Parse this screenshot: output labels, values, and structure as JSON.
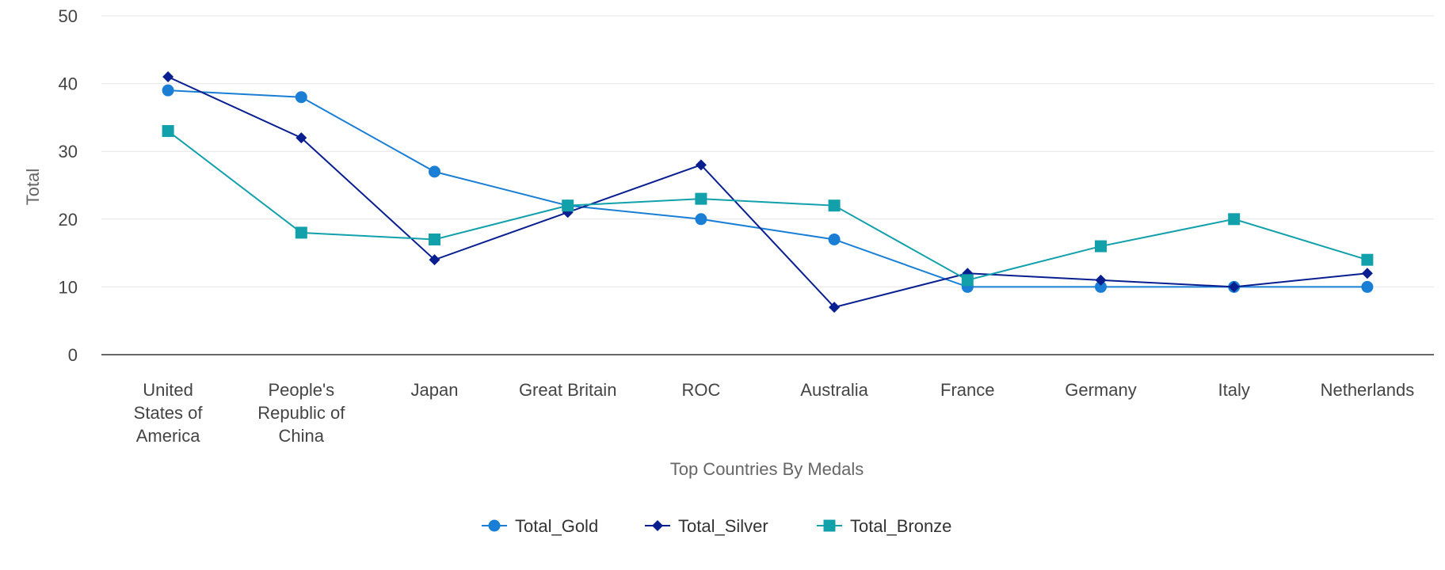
{
  "chart_data": {
    "type": "line",
    "xlabel": "Top Countries By Medals",
    "ylabel": "Total",
    "ylim": [
      0,
      50
    ],
    "yticks": [
      0,
      10,
      20,
      30,
      40,
      50
    ],
    "grid": true,
    "legend_position": "bottom",
    "categories": [
      [
        "United",
        "States of",
        "America"
      ],
      [
        "People's",
        "Republic of",
        "China"
      ],
      [
        "Japan"
      ],
      [
        "Great Britain"
      ],
      [
        "ROC"
      ],
      [
        "Australia"
      ],
      [
        "France"
      ],
      [
        "Germany"
      ],
      [
        "Italy"
      ],
      [
        "Netherlands"
      ]
    ],
    "series": [
      {
        "name": "Total_Gold",
        "color": "#1a7fd4",
        "marker": "circle",
        "values": [
          39,
          38,
          27,
          22,
          20,
          17,
          10,
          10,
          10,
          10
        ]
      },
      {
        "name": "Total_Silver",
        "color": "#0a1f8f",
        "marker": "diamond",
        "values": [
          41,
          32,
          14,
          21,
          28,
          7,
          12,
          11,
          10,
          12
        ]
      },
      {
        "name": "Total_Bronze",
        "color": "#12a0aa",
        "marker": "square",
        "values": [
          33,
          18,
          17,
          22,
          23,
          22,
          11,
          16,
          20,
          14
        ]
      }
    ]
  }
}
